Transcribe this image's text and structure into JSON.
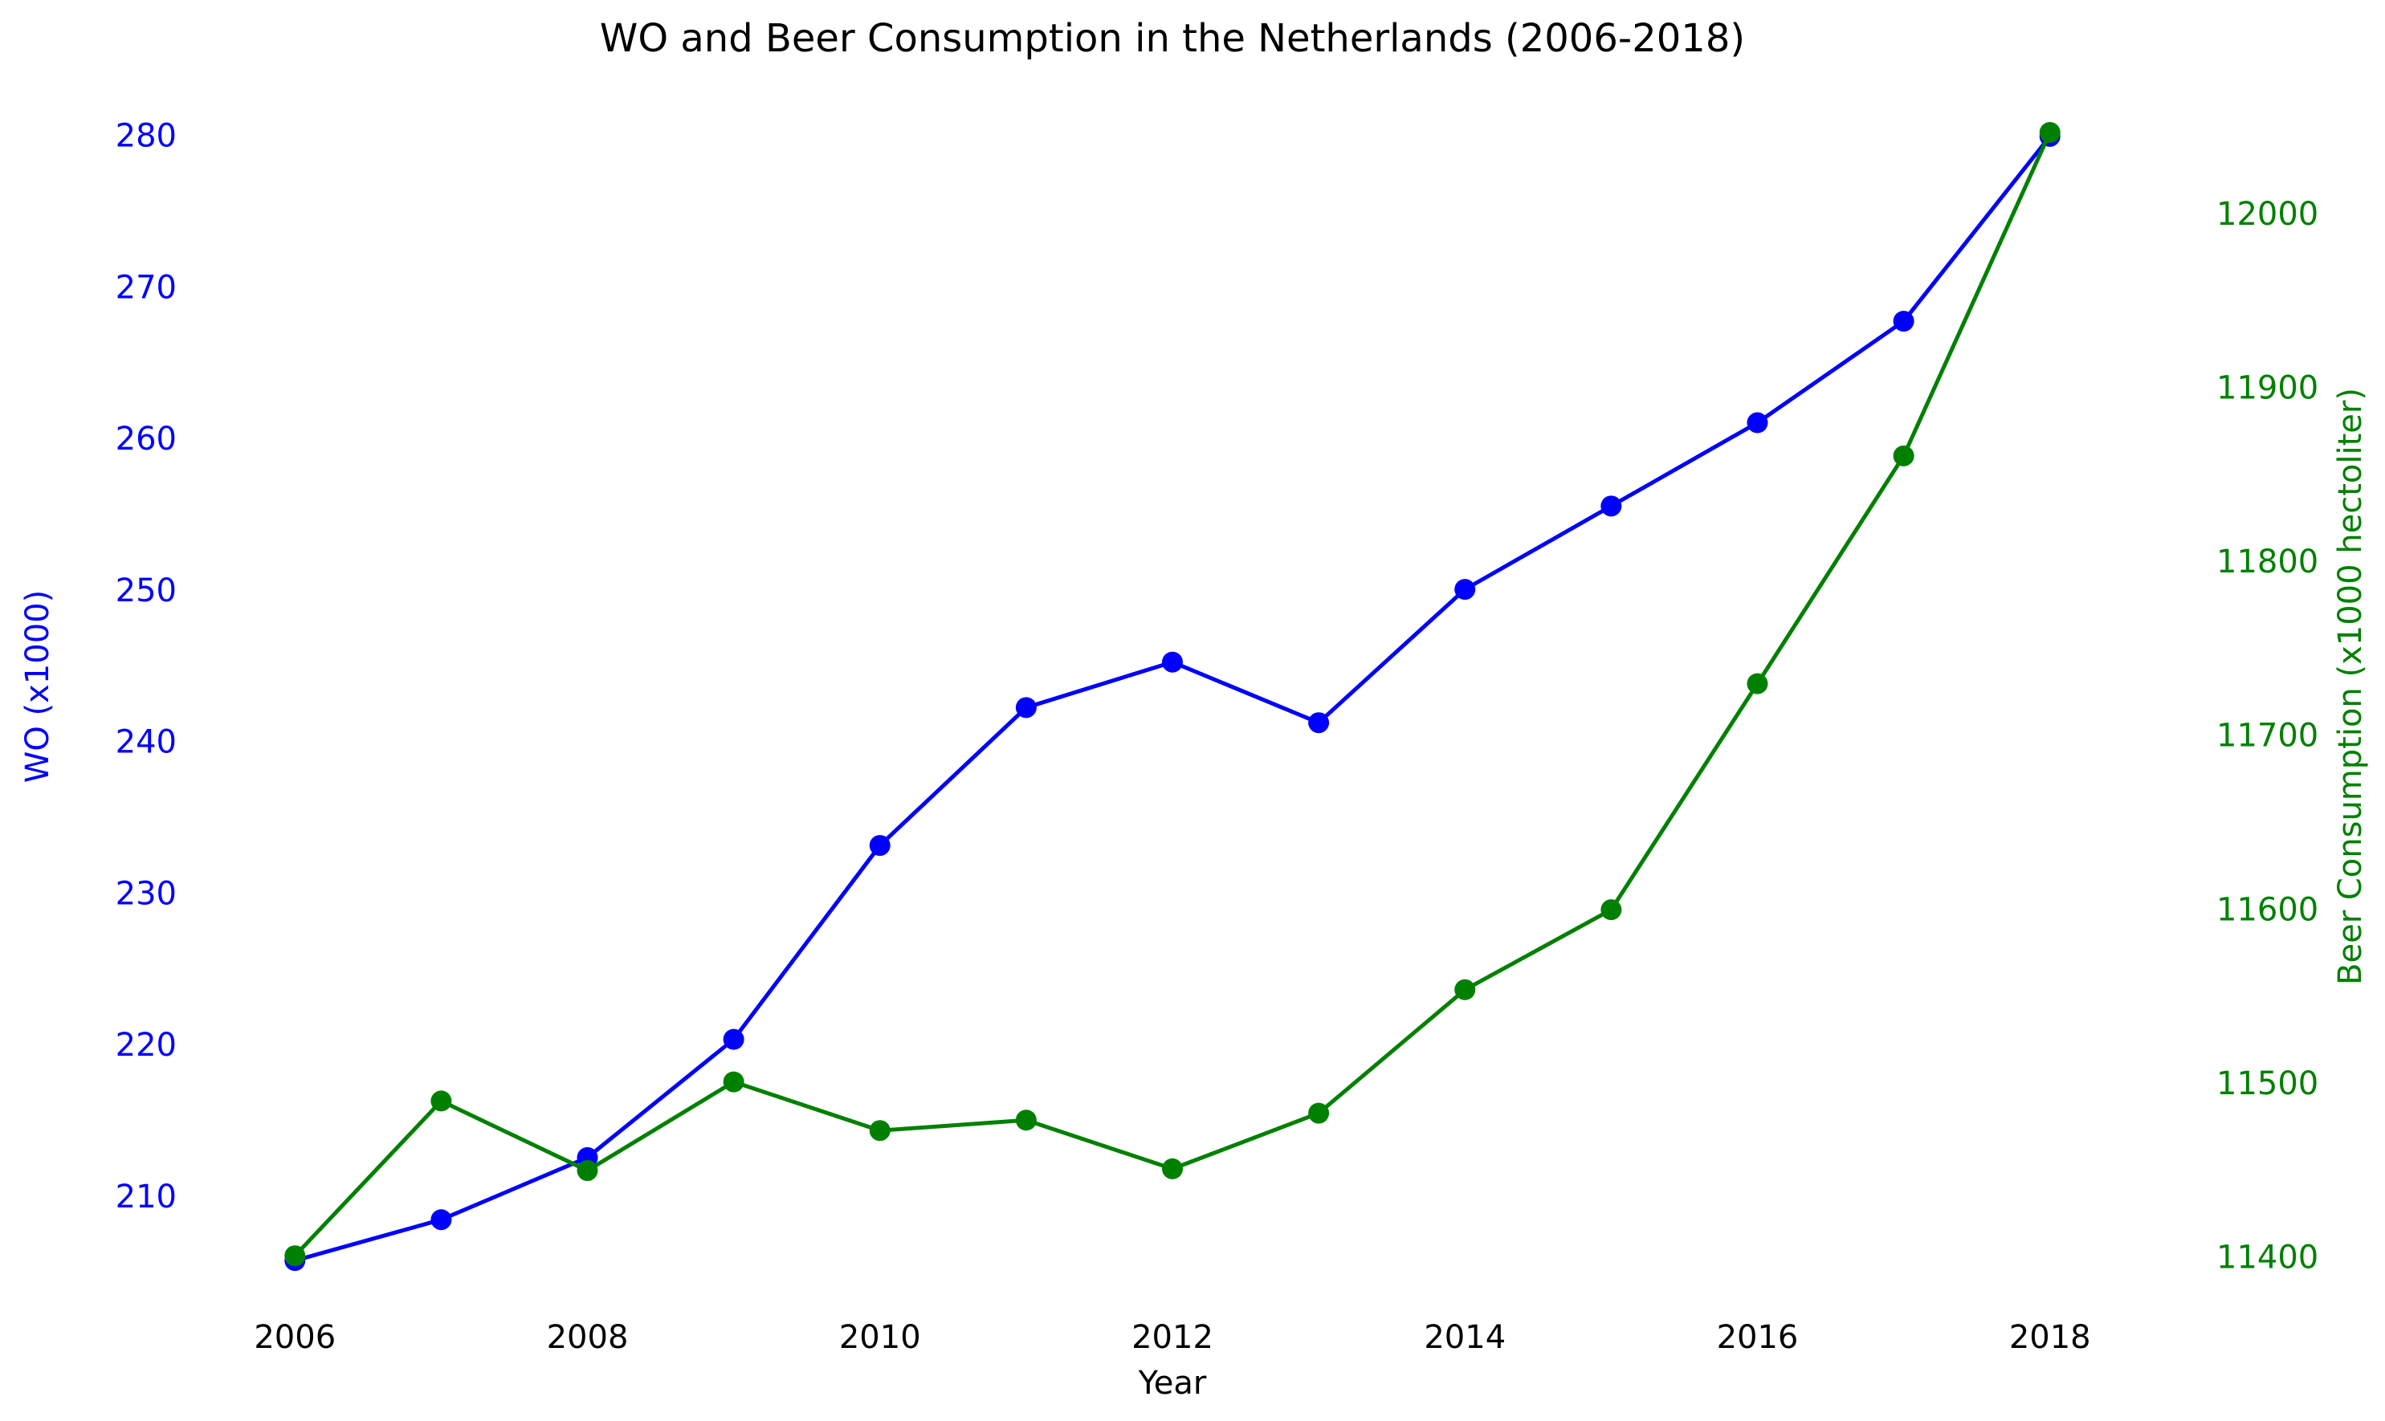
{
  "chart_data": {
    "type": "line",
    "title": "WO and Beer Consumption in the Netherlands (2006-2018)",
    "xlabel": "Year",
    "ylabel_left": "WO (x1000)",
    "ylabel_right": "Beer Consumption (x1000 hectoliter)",
    "x": [
      2006,
      2007,
      2008,
      2009,
      2010,
      2011,
      2012,
      2013,
      2014,
      2015,
      2016,
      2017,
      2018
    ],
    "x_ticks": [
      "2006",
      "2008",
      "2010",
      "2012",
      "2014",
      "2016",
      "2018"
    ],
    "y_left_ticks": [
      "210",
      "220",
      "230",
      "240",
      "250",
      "260",
      "270",
      "280"
    ],
    "y_right_ticks": [
      "11400",
      "11500",
      "11600",
      "11700",
      "11800",
      "11900",
      "12000"
    ],
    "xlim": [
      2005.4,
      2018.6
    ],
    "ylim_left": [
      202.2,
      283.8
    ],
    "ylim_right": [
      11367,
      12078
    ],
    "grid": false,
    "series": [
      {
        "axis": "left",
        "color": "#0000ff",
        "values": [
          205.9,
          208.6,
          212.7,
          220.5,
          233.3,
          242.4,
          245.4,
          241.4,
          250.2,
          255.7,
          261.2,
          267.9,
          280.1
        ]
      },
      {
        "axis": "right",
        "color": "#008000",
        "values": [
          11402,
          11491,
          11451,
          11502,
          11474,
          11480,
          11452,
          11484,
          11555,
          11601,
          11731,
          11862,
          12048
        ]
      }
    ]
  }
}
